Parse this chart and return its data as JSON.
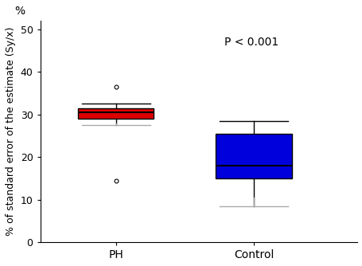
{
  "groups": [
    "PH",
    "Control"
  ],
  "PH": {
    "q1": 29.0,
    "median": 30.5,
    "q3": 31.5,
    "whisker_low": 27.5,
    "whisker_high": 32.5,
    "outliers": [
      36.5,
      14.5
    ],
    "color": "#dd0000",
    "x": 1
  },
  "Control": {
    "q1": 15.0,
    "median": 18.0,
    "q3": 25.5,
    "whisker_low": 8.5,
    "whisker_high": 28.5,
    "outliers": [],
    "color": "#0000dd",
    "x": 2
  },
  "ylim": [
    0,
    52
  ],
  "yticks": [
    0,
    10,
    20,
    30,
    40,
    50
  ],
  "ylabel": "% of standard error of the estimate (Sy/x)",
  "percent_label": "%",
  "pvalue_text": "P < 0.001",
  "pvalue_x": 0.58,
  "pvalue_y": 0.93,
  "box_width": 0.55,
  "whisker_color_dark": "#000000",
  "whisker_color_light": "#aaaaaa",
  "median_color": "#000000",
  "background_color": "#ffffff",
  "xtick_labels": [
    "PH",
    "Control"
  ],
  "xtick_positions": [
    1,
    2
  ],
  "xlim": [
    0.45,
    2.75
  ]
}
